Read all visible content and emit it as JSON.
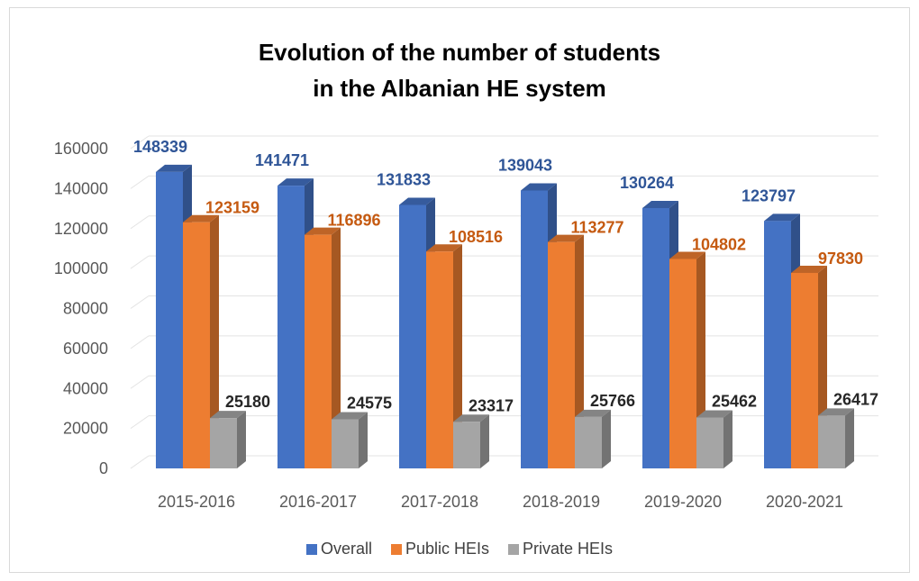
{
  "chart_data": {
    "type": "bar",
    "title_lines": [
      "Evolution of the number of students",
      "in the Albanian HE system"
    ],
    "categories": [
      "2015-2016",
      "2016-2017",
      "2017-2018",
      "2018-2019",
      "2019-2020",
      "2020-2021"
    ],
    "series": [
      {
        "name": "Overall",
        "color": "#4472c4",
        "label_color": "#2f5597",
        "values": [
          148339,
          141471,
          131833,
          139043,
          130264,
          123797
        ]
      },
      {
        "name": "Public HEIs",
        "color": "#ed7d31",
        "label_color": "#c55a11",
        "values": [
          123159,
          116896,
          108516,
          113277,
          104802,
          97830
        ]
      },
      {
        "name": "Private HEIs",
        "color": "#a5a5a5",
        "label_color": "#262626",
        "values": [
          25180,
          24575,
          23317,
          25766,
          25462,
          26417
        ]
      }
    ],
    "ylim": [
      0,
      160000
    ],
    "yticks": [
      0,
      20000,
      40000,
      60000,
      80000,
      100000,
      120000,
      140000,
      160000
    ],
    "grid": true,
    "legend_position": "bottom",
    "style": "3d-clustered-column"
  }
}
